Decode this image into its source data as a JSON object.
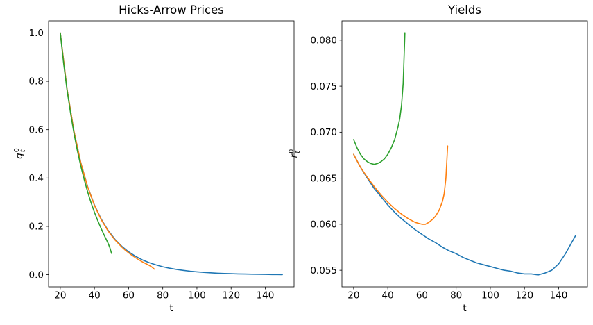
{
  "chart_data": [
    {
      "name": "hicks-arrow-prices",
      "type": "line",
      "title": "Hicks-Arrow Prices",
      "xlabel": "t",
      "ylabel": {
        "base": "q",
        "sup": "0",
        "sub": "t"
      },
      "xlim": [
        13.15,
        156.85
      ],
      "ylim": [
        -0.05,
        1.05
      ],
      "grid": false,
      "legend": "none",
      "xticks": [
        20,
        40,
        60,
        80,
        100,
        120,
        140
      ],
      "xtick_labels": [
        "20",
        "40",
        "60",
        "80",
        "100",
        "120",
        "140"
      ],
      "yticks": [
        0.0,
        0.2,
        0.4,
        0.6,
        0.8,
        1.0
      ],
      "ytick_labels": [
        "0.0",
        "0.2",
        "0.4",
        "0.6",
        "0.8",
        "1.0"
      ],
      "series": [
        {
          "name": "blue-line",
          "color": "#1f77b4",
          "x": [
            20,
            24,
            28,
            32,
            36,
            40,
            44,
            48,
            52,
            56,
            60,
            64,
            68,
            72,
            76,
            80,
            84,
            88,
            92,
            96,
            100,
            104,
            108,
            112,
            116,
            120,
            124,
            128,
            132,
            136,
            140,
            144,
            147,
            150
          ],
          "y": [
            1.0,
            0.7674,
            0.5945,
            0.4645,
            0.365,
            0.2888,
            0.2296,
            0.1833,
            0.1466,
            0.1178,
            0.0948,
            0.0766,
            0.0618,
            0.0503,
            0.0408,
            0.0331,
            0.027,
            0.022,
            0.018,
            0.0146,
            0.0119,
            0.0097,
            0.0079,
            0.0064,
            0.0052,
            0.0043,
            0.0034,
            0.0028,
            0.0022,
            0.0017,
            0.0013,
            0.0009,
            0.0007,
            0.0005
          ]
        },
        {
          "name": "orange-line",
          "color": "#ff7f0e",
          "x": [
            20,
            24,
            28,
            32,
            36,
            40,
            44,
            48,
            52,
            56,
            58,
            60,
            62,
            64,
            66,
            68,
            70,
            72,
            73,
            74,
            75
          ],
          "y": [
            1.0,
            0.7674,
            0.594,
            0.4634,
            0.3638,
            0.2871,
            0.2274,
            0.1807,
            0.1438,
            0.1145,
            0.1019,
            0.0907,
            0.0804,
            0.0707,
            0.0619,
            0.0538,
            0.0462,
            0.0388,
            0.0349,
            0.0299,
            0.0231
          ]
        },
        {
          "name": "green-line",
          "color": "#2ca02c",
          "x": [
            20,
            22,
            24,
            26,
            28,
            30,
            32,
            34,
            36,
            38,
            40,
            42,
            44,
            46,
            47,
            48,
            49,
            50
          ],
          "y": [
            1.0,
            0.8723,
            0.7631,
            0.6686,
            0.586,
            0.5138,
            0.4502,
            0.3936,
            0.3434,
            0.2988,
            0.2587,
            0.2226,
            0.19,
            0.1595,
            0.1451,
            0.1299,
            0.1126,
            0.0885
          ]
        }
      ]
    },
    {
      "name": "yields",
      "type": "line",
      "title": "Yields",
      "xlabel": "t",
      "ylabel": {
        "base": "r",
        "sup": "0",
        "sub": "t"
      },
      "xlim": [
        13.15,
        156.85
      ],
      "ylim": [
        0.0532,
        0.0821
      ],
      "grid": false,
      "legend": "none",
      "xticks": [
        20,
        40,
        60,
        80,
        100,
        120,
        140
      ],
      "xtick_labels": [
        "20",
        "40",
        "60",
        "80",
        "100",
        "120",
        "140"
      ],
      "yticks": [
        0.055,
        0.06,
        0.065,
        0.07,
        0.075,
        0.08
      ],
      "ytick_labels": [
        "0.055",
        "0.060",
        "0.065",
        "0.070",
        "0.075",
        "0.080"
      ],
      "series": [
        {
          "name": "blue-line",
          "color": "#1f77b4",
          "x": [
            20,
            24,
            28,
            32,
            36,
            40,
            44,
            48,
            52,
            56,
            60,
            64,
            68,
            72,
            76,
            80,
            84,
            88,
            92,
            96,
            100,
            104,
            108,
            112,
            116,
            120,
            124,
            128,
            132,
            136,
            140,
            144,
            147,
            150
          ],
          "y": [
            0.0676,
            0.0662,
            0.065,
            0.0639,
            0.063,
            0.0621,
            0.0613,
            0.0606,
            0.06,
            0.0594,
            0.0589,
            0.0584,
            0.058,
            0.0575,
            0.0571,
            0.0568,
            0.0564,
            0.0561,
            0.0558,
            0.0556,
            0.0554,
            0.0552,
            0.055,
            0.0549,
            0.0547,
            0.0546,
            0.0546,
            0.0545,
            0.0547,
            0.055,
            0.0557,
            0.0568,
            0.0578,
            0.0588
          ]
        },
        {
          "name": "orange-line",
          "color": "#ff7f0e",
          "x": [
            20,
            24,
            28,
            32,
            36,
            40,
            44,
            48,
            52,
            56,
            58,
            60,
            62,
            64,
            66,
            68,
            70,
            72,
            73,
            74,
            75
          ],
          "y": [
            0.0676,
            0.0662,
            0.0651,
            0.0641,
            0.0632,
            0.0624,
            0.0617,
            0.0611,
            0.0606,
            0.0602,
            0.0601,
            0.06,
            0.06,
            0.0602,
            0.0605,
            0.0609,
            0.0615,
            0.0625,
            0.0633,
            0.065,
            0.0685
          ]
        },
        {
          "name": "green-line",
          "color": "#2ca02c",
          "x": [
            20,
            22,
            24,
            26,
            28,
            30,
            32,
            34,
            36,
            38,
            40,
            42,
            44,
            46,
            47,
            48,
            49,
            50
          ],
          "y": [
            0.0692,
            0.0683,
            0.0676,
            0.0671,
            0.0668,
            0.0666,
            0.0665,
            0.0666,
            0.0668,
            0.0671,
            0.0676,
            0.0683,
            0.0692,
            0.0706,
            0.0715,
            0.0729,
            0.0753,
            0.0808
          ]
        }
      ]
    }
  ]
}
